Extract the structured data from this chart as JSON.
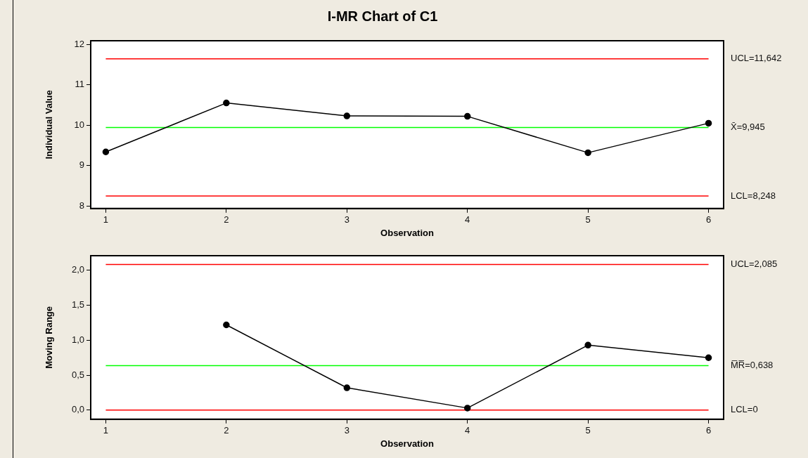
{
  "chart_data": [
    {
      "type": "line",
      "title": "I-MR Chart of C1",
      "xlabel": "Observation",
      "ylabel": "Individual Value",
      "x": [
        1,
        2,
        3,
        4,
        5,
        6
      ],
      "series": [
        {
          "color": "#000000",
          "values": [
            9.34,
            10.55,
            10.23,
            10.22,
            9.32,
            10.05
          ]
        }
      ],
      "xlim": [
        0.875,
        6.125
      ],
      "xticks": [
        1,
        2,
        3,
        4,
        5,
        6
      ],
      "ylim": [
        7.94,
        12.09
      ],
      "yticks": [
        8,
        9,
        10,
        11,
        12
      ],
      "ref_lines": [
        {
          "axis": "y",
          "value": 11.642,
          "label": "UCL=11,642",
          "color": "#ff0000"
        },
        {
          "axis": "y",
          "value": 9.945,
          "label": "X̄=9,945",
          "color": "#00ff00"
        },
        {
          "axis": "y",
          "value": 8.248,
          "label": "LCL=8,248",
          "color": "#ff0000"
        }
      ],
      "marker": "circle",
      "grid": false,
      "legend": false
    },
    {
      "type": "line",
      "xlabel": "Observation",
      "ylabel": "Moving Range",
      "series": [
        {
          "color": "#000000",
          "x": [
            2,
            3,
            4,
            5,
            6
          ],
          "values": [
            1.22,
            0.32,
            0.03,
            0.93,
            0.75
          ]
        }
      ],
      "xlim": [
        0.875,
        6.125
      ],
      "xticks": [
        1,
        2,
        3,
        4,
        5,
        6
      ],
      "ylim": [
        -0.13,
        2.21
      ],
      "yticks": [
        {
          "value": 0,
          "label": "0,0"
        },
        {
          "value": 0.5,
          "label": "0,5"
        },
        {
          "value": 1,
          "label": "1,0"
        },
        {
          "value": 1.5,
          "label": "1,5"
        },
        {
          "value": 2,
          "label": "2,0"
        }
      ],
      "ref_lines": [
        {
          "axis": "y",
          "value": 2.085,
          "label": "UCL=2,085",
          "color": "#ff0000"
        },
        {
          "axis": "y",
          "value": 0.638,
          "label": "M̅R̅=0,638",
          "color": "#00ff00"
        },
        {
          "axis": "y",
          "value": 0,
          "label": "LCL=0",
          "color": "#ff0000"
        }
      ],
      "marker": "circle",
      "grid": false,
      "legend": false
    }
  ]
}
